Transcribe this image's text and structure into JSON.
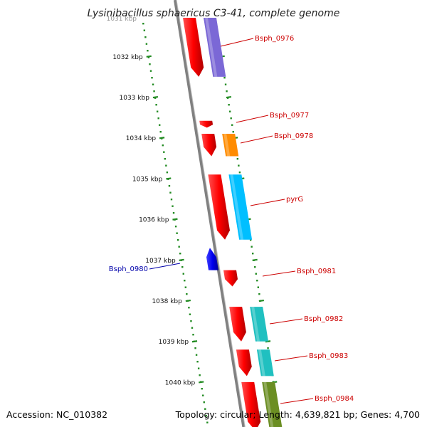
{
  "title": "Lysinibacillus sphaericus C3-41, complete genome",
  "footer": {
    "accession": "Accession: NC_010382",
    "topology": "Topology: circular; Length: 4,639,821 bp; Genes: 4,700"
  },
  "colors": {
    "forward_label": "#cc0000",
    "reverse_label": "#0000aa",
    "ruler": "#228b22",
    "backbone": "#808080"
  },
  "ruler": {
    "partial_label": "1031 kbp",
    "ticks": [
      {
        "label": "1032 kbp",
        "kbp": 1032
      },
      {
        "label": "1033 kbp",
        "kbp": 1033
      },
      {
        "label": "1034 kbp",
        "kbp": 1034
      },
      {
        "label": "1035 kbp",
        "kbp": 1035
      },
      {
        "label": "1036 kbp",
        "kbp": 1036
      },
      {
        "label": "1037 kbp",
        "kbp": 1037
      },
      {
        "label": "1038 kbp",
        "kbp": 1038
      },
      {
        "label": "1039 kbp",
        "kbp": 1039
      },
      {
        "label": "1040 kbp",
        "kbp": 1040
      }
    ]
  },
  "genes": [
    {
      "label": "Bsph_0976",
      "strand": "+",
      "start_kbp": 1031.05,
      "end_kbp": 1032.5,
      "cog_color": "#7b68d6"
    },
    {
      "label": "Bsph_0977",
      "strand": "+",
      "start_kbp": 1033.58,
      "end_kbp": 1033.75,
      "cog_color": ""
    },
    {
      "label": "Bsph_0978",
      "strand": "+",
      "start_kbp": 1033.9,
      "end_kbp": 1034.45,
      "cog_color": "#ff8c00"
    },
    {
      "label": "pyrG",
      "strand": "+",
      "start_kbp": 1034.9,
      "end_kbp": 1036.5,
      "cog_color": "#00bfff"
    },
    {
      "label": "Bsph_0980",
      "strand": "-",
      "start_kbp": 1036.7,
      "end_kbp": 1037.25,
      "cog_color": ""
    },
    {
      "label": "Bsph_0981",
      "strand": "+",
      "start_kbp": 1037.25,
      "end_kbp": 1037.65,
      "cog_color": ""
    },
    {
      "label": "Bsph_0982",
      "strand": "+",
      "start_kbp": 1038.15,
      "end_kbp": 1039.0,
      "cog_color": "#20c0c0"
    },
    {
      "label": "Bsph_0983",
      "strand": "+",
      "start_kbp": 1039.2,
      "end_kbp": 1039.85,
      "cog_color": "#20c0c0"
    },
    {
      "label": "Bsph_0984",
      "strand": "+",
      "start_kbp": 1040.0,
      "end_kbp": 1041.2,
      "cog_color": "#6b8e23"
    }
  ]
}
